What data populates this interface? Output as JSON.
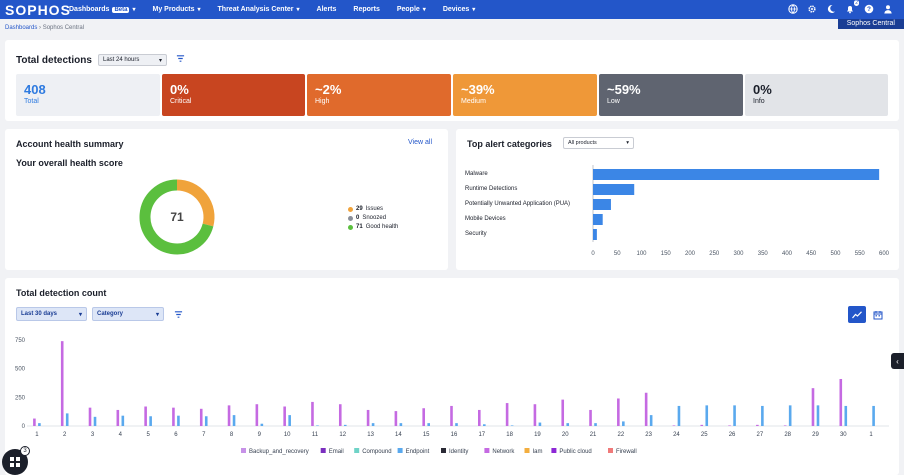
{
  "nav": {
    "logo": "SOPHOS",
    "items": [
      {
        "label": "Dashboards",
        "badge": "Beta",
        "chevron": true
      },
      {
        "label": "My Products",
        "chevron": true
      },
      {
        "label": "Threat Analysis Center",
        "chevron": true
      },
      {
        "label": "Alerts",
        "chevron": false
      },
      {
        "label": "Reports",
        "chevron": false
      },
      {
        "label": "People",
        "chevron": true
      },
      {
        "label": "Devices",
        "chevron": true
      }
    ],
    "notification_count": "2",
    "tenant": "Sophos Central"
  },
  "breadcrumb": {
    "root": "Dashboards",
    "current": "Sophos Central"
  },
  "detections": {
    "title": "Total detections",
    "range": "Last 24 hours",
    "tiles": [
      {
        "value": "408",
        "label": "Total",
        "bg": "#eef0f4",
        "fg": "#2f7be0"
      },
      {
        "value": "0%",
        "label": "Critical",
        "bg": "#c84520",
        "fg": "#ffffff"
      },
      {
        "value": "~2%",
        "label": "High",
        "bg": "#e06a2c",
        "fg": "#ffffff"
      },
      {
        "value": "~39%",
        "label": "Medium",
        "bg": "#ef9838",
        "fg": "#ffffff"
      },
      {
        "value": "~59%",
        "label": "Low",
        "bg": "#5f6470",
        "fg": "#ffffff"
      },
      {
        "value": "0%",
        "label": "Info",
        "bg": "#e2e4e8",
        "fg": "#1b1f2a"
      }
    ]
  },
  "health": {
    "title": "Account health summary",
    "view_all": "View all",
    "subtitle": "Your overall health score",
    "score": "71",
    "legend": [
      {
        "count": "29",
        "label": "Issues",
        "color": "#f0a33b",
        "value": 29
      },
      {
        "count": "0",
        "label": "Snoozed",
        "color": "#8a8f99",
        "value": 0
      },
      {
        "count": "71",
        "label": "Good health",
        "color": "#5bbf3e",
        "value": 71
      }
    ]
  },
  "alerts": {
    "title": "Top alert categories",
    "filter": "All products",
    "chart_data": {
      "type": "bar",
      "orientation": "horizontal",
      "categories": [
        "Malware",
        "Runtime Detections",
        "Potentially Unwanted Application (PUA)",
        "Mobile Devices",
        "Security"
      ],
      "values": [
        590,
        85,
        37,
        20,
        8
      ],
      "xticks": [
        "0",
        "50",
        "100",
        "150",
        "200",
        "250",
        "300",
        "350",
        "400",
        "450",
        "500",
        "550",
        "600"
      ],
      "xlim": [
        0,
        600
      ],
      "color": "#3b86e6"
    }
  },
  "count": {
    "title": "Total detection count",
    "range": "Last 30 days",
    "grouping": "Category",
    "chart_data": {
      "type": "bar",
      "categories": [
        "1",
        "2",
        "3",
        "4",
        "5",
        "6",
        "7",
        "8",
        "9",
        "10",
        "11",
        "12",
        "13",
        "14",
        "15",
        "16",
        "17",
        "18",
        "19",
        "20",
        "21",
        "22",
        "23",
        "24",
        "25",
        "26",
        "27",
        "28",
        "29",
        "30",
        "1"
      ],
      "yticks": [
        "750",
        "500",
        "250",
        "0"
      ],
      "ylim": [
        0,
        750
      ],
      "series": [
        {
          "name": "Backup_and_recovery",
          "color": "#c792e8",
          "values": [
            0,
            0,
            0,
            0,
            0,
            0,
            0,
            0,
            0,
            0,
            0,
            0,
            0,
            0,
            0,
            0,
            0,
            0,
            0,
            0,
            0,
            0,
            0,
            0,
            0,
            0,
            0,
            0,
            0,
            0,
            0
          ]
        },
        {
          "name": "Email",
          "color": "#7b2fbf",
          "values": [
            0,
            0,
            0,
            0,
            0,
            0,
            0,
            0,
            0,
            0,
            0,
            0,
            0,
            0,
            0,
            0,
            0,
            0,
            0,
            0,
            0,
            0,
            0,
            0,
            0,
            0,
            0,
            0,
            0,
            0,
            0
          ]
        },
        {
          "name": "Compound",
          "color": "#6fd3c7",
          "values": [
            0,
            0,
            0,
            0,
            0,
            0,
            0,
            0,
            0,
            0,
            0,
            0,
            0,
            0,
            0,
            0,
            0,
            0,
            0,
            0,
            0,
            0,
            0,
            0,
            0,
            0,
            0,
            0,
            0,
            0,
            0
          ]
        },
        {
          "name": "Endpoint",
          "color": "#5aa9ee",
          "values": [
            25,
            110,
            80,
            90,
            85,
            90,
            85,
            95,
            20,
            95,
            5,
            10,
            25,
            25,
            25,
            25,
            15,
            5,
            30,
            25,
            25,
            40,
            95,
            175,
            180,
            180,
            175,
            180,
            180,
            175,
            175
          ]
        },
        {
          "name": "Identity",
          "color": "#2a2a35",
          "values": [
            0,
            0,
            0,
            0,
            0,
            0,
            0,
            0,
            0,
            0,
            0,
            0,
            0,
            0,
            0,
            0,
            0,
            0,
            0,
            0,
            0,
            0,
            0,
            0,
            0,
            0,
            0,
            0,
            0,
            0,
            0
          ]
        },
        {
          "name": "Network",
          "color": "#c56ae2",
          "values": [
            65,
            740,
            160,
            140,
            170,
            160,
            150,
            180,
            190,
            170,
            210,
            190,
            140,
            130,
            155,
            175,
            140,
            200,
            190,
            230,
            140,
            240,
            290,
            5,
            10,
            5,
            10,
            5,
            330,
            410,
            0
          ]
        },
        {
          "name": "Iam",
          "color": "#f3ae3f",
          "values": [
            0,
            0,
            0,
            0,
            0,
            0,
            0,
            0,
            0,
            0,
            0,
            0,
            0,
            0,
            0,
            0,
            0,
            0,
            0,
            0,
            0,
            0,
            0,
            0,
            0,
            0,
            0,
            0,
            0,
            0,
            0
          ]
        },
        {
          "name": "Public cloud",
          "color": "#8d28d6",
          "values": [
            0,
            0,
            0,
            0,
            0,
            0,
            0,
            0,
            0,
            0,
            0,
            0,
            0,
            0,
            0,
            0,
            0,
            0,
            0,
            0,
            0,
            0,
            0,
            0,
            0,
            0,
            0,
            0,
            0,
            0,
            0
          ]
        },
        {
          "name": "Firewall",
          "color": "#f07a7a",
          "values": [
            0,
            0,
            0,
            0,
            0,
            0,
            0,
            0,
            0,
            0,
            0,
            0,
            0,
            0,
            0,
            0,
            0,
            0,
            0,
            0,
            0,
            0,
            0,
            0,
            0,
            0,
            0,
            0,
            0,
            0,
            0
          ]
        }
      ]
    }
  },
  "floating_badge": "3"
}
